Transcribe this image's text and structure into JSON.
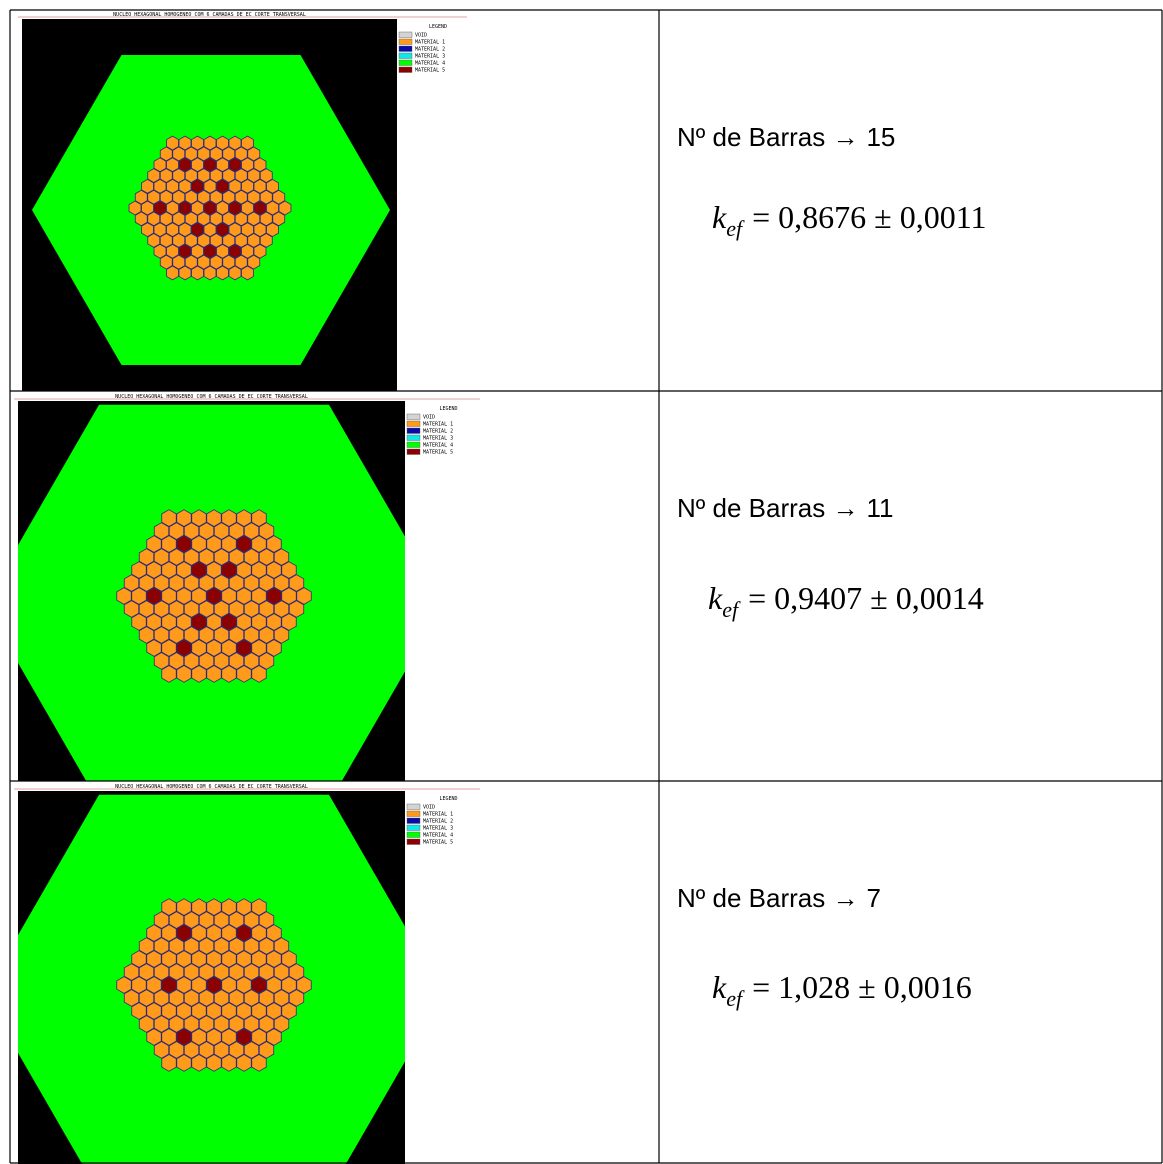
{
  "plot": {
    "title": "NUCLEO HEXAGONAL HOMOGENEO COM 6 CAMADAS DE EC CORTE TRANSVERSAL",
    "legend_title": "LEGEND",
    "legend": [
      {
        "label": "VOID",
        "color": "#d4d4d4"
      },
      {
        "label": "MATERIAL 1",
        "color": "#ff9a1a"
      },
      {
        "label": "MATERIAL 2",
        "color": "#0a0aa8"
      },
      {
        "label": "MATERIAL 3",
        "color": "#10e8e8"
      },
      {
        "label": "MATERIAL 4",
        "color": "#00ff00"
      },
      {
        "label": "MATERIAL 5",
        "color": "#8b0000"
      }
    ]
  },
  "table": {
    "rows": [
      {
        "bars_label": "Nº de Barras →",
        "bars": 15,
        "k_symbol": "k",
        "k_sub": "ef",
        "k_text": "= 0,8676 ± 0,0011"
      },
      {
        "bars_label": "Nº de Barras →",
        "bars": 11,
        "k_symbol": "k",
        "k_sub": "ef",
        "k_text": "= 0,9407 ± 0,0014"
      },
      {
        "bars_label": "Nº de Barras →",
        "bars": 7,
        "k_symbol": "k",
        "k_sub": "ef",
        "k_text": "= 1,028 ± 0,0016"
      }
    ]
  }
}
